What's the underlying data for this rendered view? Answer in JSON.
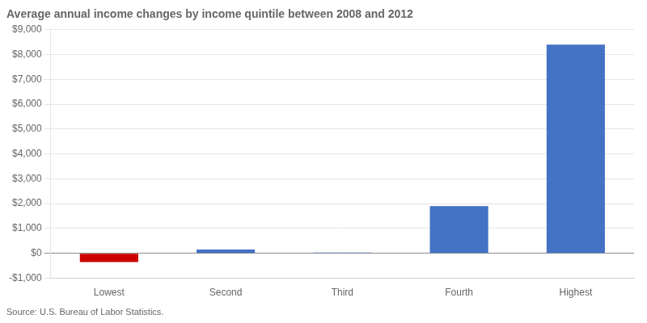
{
  "chart_data": {
    "type": "bar",
    "title": "Average annual income changes by income quintile between 2008 and 2012",
    "annotation": "Source: U.S. Bureau of Labor Statistics.",
    "categories": [
      "Lowest",
      "Second",
      "Third",
      "Fourth",
      "Highest"
    ],
    "values": [
      -350,
      150,
      30,
      1900,
      8400
    ],
    "colors": [
      "#cc0000",
      "#4472c4",
      "#4472c4",
      "#4472c4",
      "#4472c4"
    ],
    "ylim": [
      -1000,
      9000
    ],
    "yticks": [
      {
        "value": -1000,
        "label": "-$1,000"
      },
      {
        "value": 0,
        "label": "$0"
      },
      {
        "value": 1000,
        "label": "$1,000"
      },
      {
        "value": 2000,
        "label": "$2,000"
      },
      {
        "value": 3000,
        "label": "$3,000"
      },
      {
        "value": 4000,
        "label": "$4,000"
      },
      {
        "value": 5000,
        "label": "$5,000"
      },
      {
        "value": 6000,
        "label": "$6,000"
      },
      {
        "value": 7000,
        "label": "$7,000"
      },
      {
        "value": 8000,
        "label": "$8,000"
      },
      {
        "value": 9000,
        "label": "$9,000"
      }
    ],
    "grid": true
  }
}
